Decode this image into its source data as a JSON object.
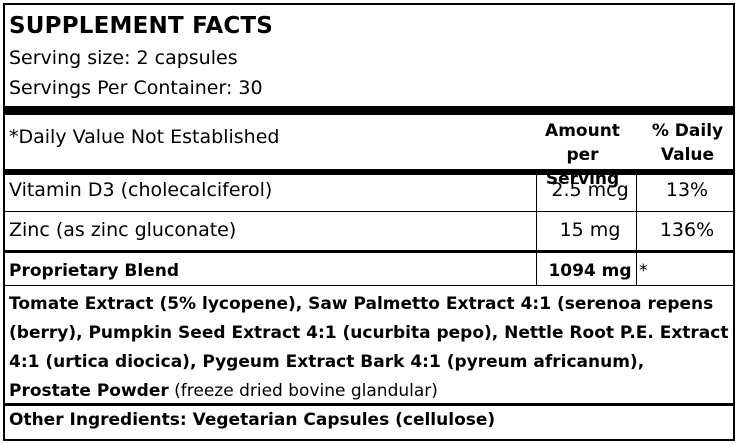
{
  "title": "SUPPLEMENT FACTS",
  "serving_size": "Serving size: 2 capsules",
  "servings_per_container": "Servings Per Container: 30",
  "header": {
    "note": "*Daily Value Not Established",
    "amount_line1": "Amount",
    "amount_line2": "per Serving",
    "dv_line1": "% Daily",
    "dv_line2": "Value"
  },
  "nutrients": [
    {
      "name": "Vitamin D3 (cholecalciferol)",
      "amount": "2.5 mcg",
      "dv": "13%"
    },
    {
      "name": "Zinc (as zinc gluconate)",
      "amount": "15 mg",
      "dv": "136%"
    }
  ],
  "blend": {
    "name": "Proprietary Blend",
    "amount": "1094 mg",
    "dv": "*",
    "ingredients_bold": "Tomate Extract (5% lycopene), Saw Palmetto Extract 4:1 (serenoa repens (berry), Pumpkin Seed Extract 4:1 (ucurbita pepo), Nettle Root P.E. Extract 4:1 (urtica diocica), Pygeum Extract Bark 4:1 (pyreum africanum), Prostate Powder",
    "ingredients_regular": " (freeze dried bovine glandular)"
  },
  "other_ingredients": "Other Ingredients: Vegetarian Capsules (cellulose)"
}
